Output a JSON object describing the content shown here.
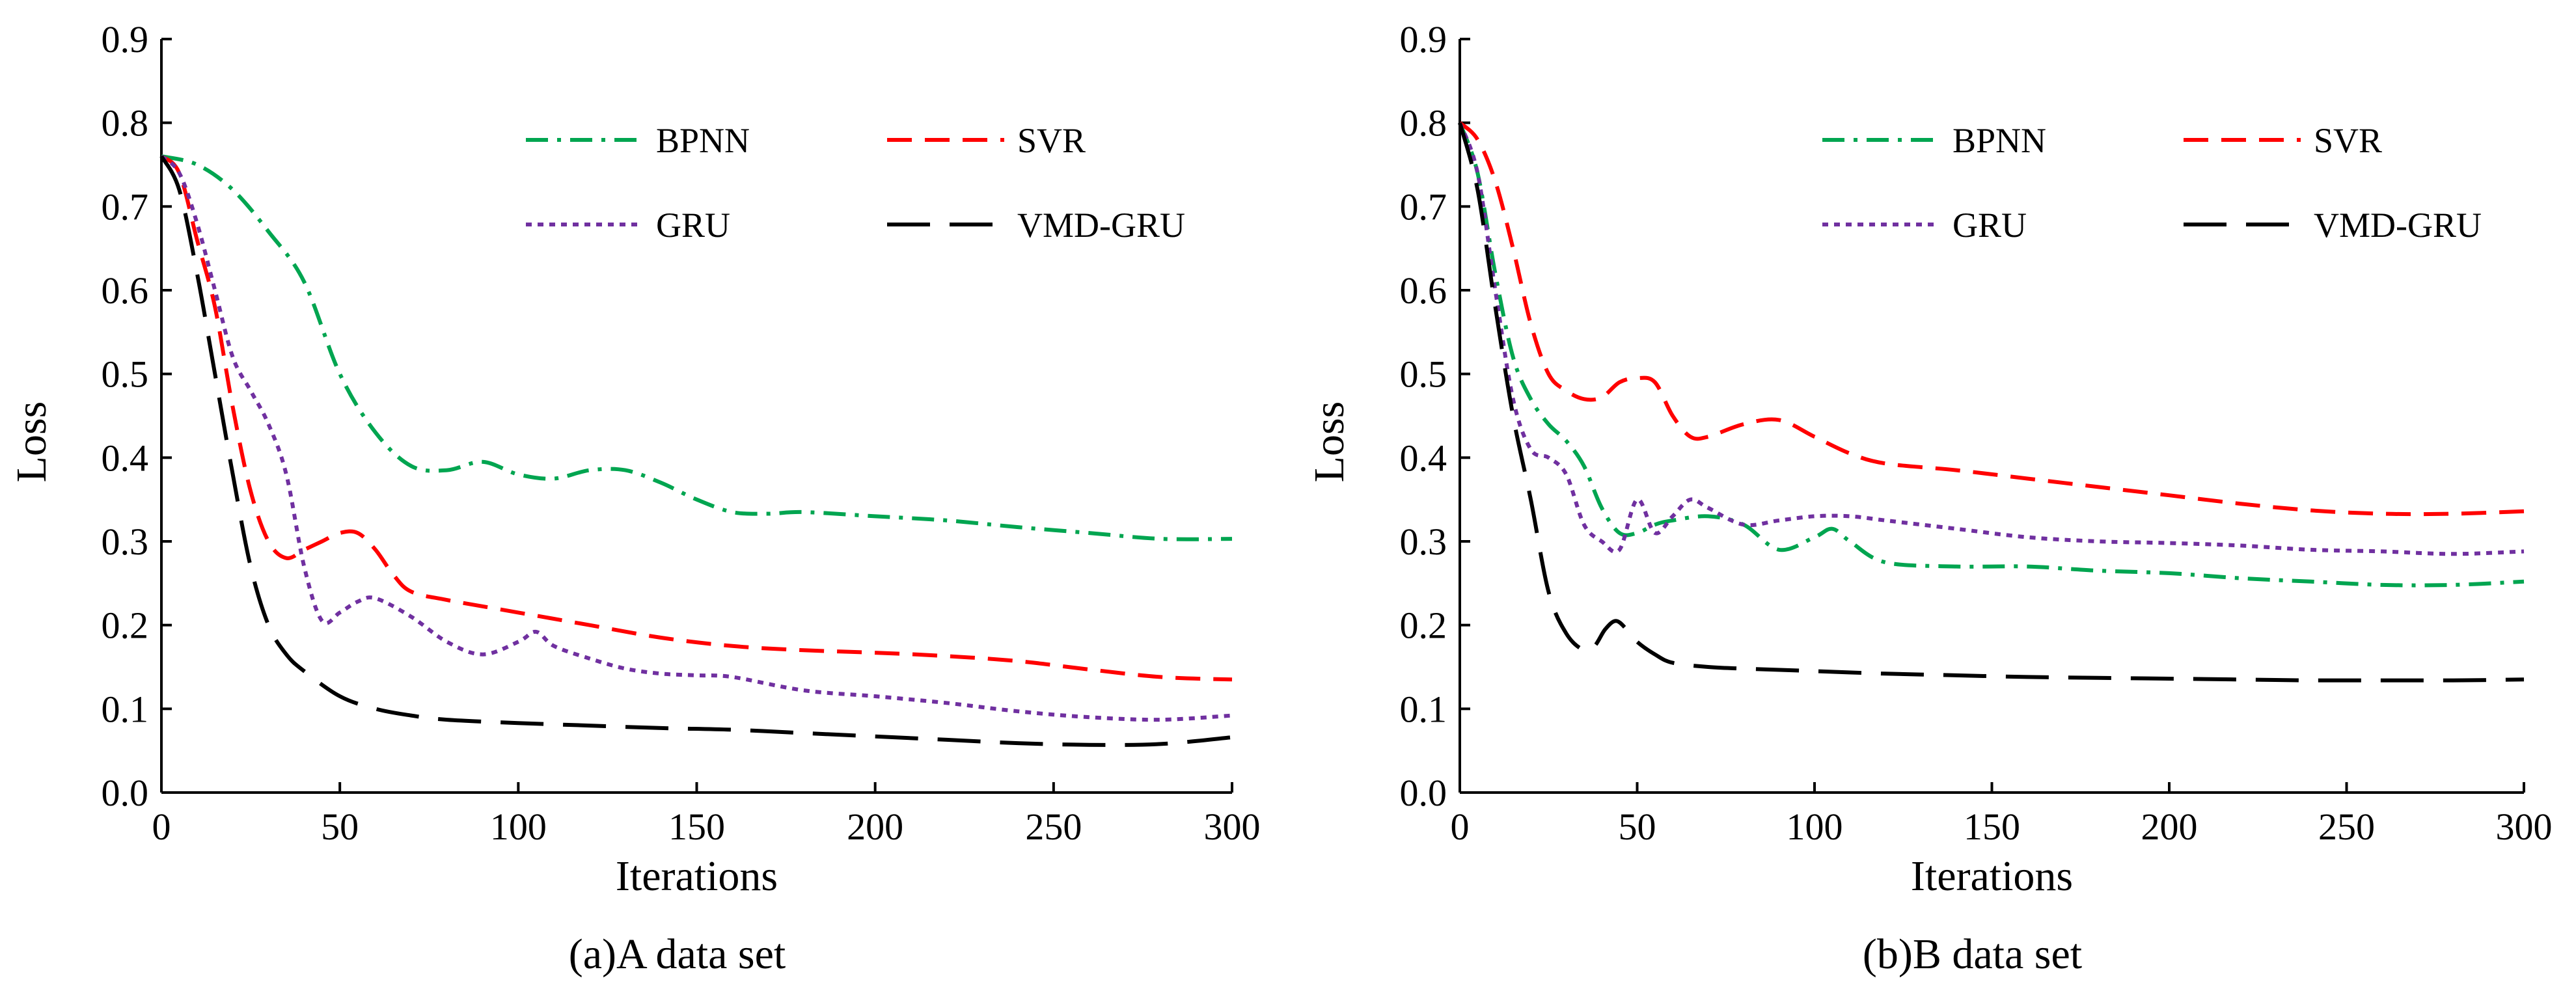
{
  "chart_data": [
    {
      "type": "line",
      "caption": "(a)A data set",
      "xlabel": "Iterations",
      "ylabel": "Loss",
      "xlim": [
        0,
        300
      ],
      "ylim": [
        0,
        0.9
      ],
      "xticks": [
        "0",
        "50",
        "100",
        "150",
        "200",
        "250",
        "300"
      ],
      "yticks": [
        "0.0",
        "0.1",
        "0.2",
        "0.3",
        "0.4",
        "0.5",
        "0.6",
        "0.7",
        "0.8",
        "0.9"
      ],
      "legend": [
        "BPNN",
        "SVR",
        "GRU",
        "VMD-GRU"
      ],
      "legend_position": "top-right",
      "series": [
        {
          "name": "BPNN",
          "color": "#00A550",
          "dash": "dashdot",
          "x": [
            0,
            10,
            20,
            30,
            40,
            50,
            60,
            70,
            80,
            90,
            100,
            110,
            120,
            130,
            140,
            150,
            160,
            170,
            180,
            200,
            220,
            240,
            260,
            280,
            300
          ],
          "y": [
            0.76,
            0.75,
            0.72,
            0.67,
            0.61,
            0.5,
            0.43,
            0.39,
            0.385,
            0.395,
            0.38,
            0.375,
            0.385,
            0.385,
            0.37,
            0.35,
            0.335,
            0.333,
            0.335,
            0.33,
            0.325,
            0.317,
            0.31,
            0.303,
            0.303
          ]
        },
        {
          "name": "SVR",
          "color": "#FF0000",
          "dash": "dash",
          "x": [
            0,
            5,
            10,
            15,
            20,
            25,
            30,
            35,
            40,
            45,
            50,
            55,
            60,
            65,
            70,
            80,
            100,
            120,
            140,
            160,
            180,
            200,
            220,
            240,
            260,
            280,
            300
          ],
          "y": [
            0.76,
            0.74,
            0.66,
            0.58,
            0.46,
            0.36,
            0.3,
            0.28,
            0.29,
            0.3,
            0.31,
            0.31,
            0.29,
            0.26,
            0.24,
            0.23,
            0.215,
            0.2,
            0.185,
            0.175,
            0.17,
            0.167,
            0.163,
            0.157,
            0.147,
            0.138,
            0.135
          ]
        },
        {
          "name": "GRU",
          "color": "#7030A0",
          "dash": "dot",
          "x": [
            0,
            5,
            10,
            15,
            20,
            25,
            30,
            35,
            40,
            45,
            50,
            55,
            60,
            70,
            80,
            90,
            100,
            105,
            110,
            120,
            130,
            140,
            150,
            160,
            180,
            200,
            220,
            240,
            260,
            280,
            300
          ],
          "y": [
            0.76,
            0.74,
            0.68,
            0.6,
            0.52,
            0.48,
            0.44,
            0.38,
            0.27,
            0.205,
            0.215,
            0.228,
            0.232,
            0.21,
            0.18,
            0.165,
            0.18,
            0.192,
            0.175,
            0.16,
            0.148,
            0.142,
            0.14,
            0.138,
            0.122,
            0.115,
            0.107,
            0.097,
            0.09,
            0.087,
            0.092
          ]
        },
        {
          "name": "VMD-GRU",
          "color": "#000000",
          "dash": "longdash",
          "x": [
            0,
            5,
            10,
            15,
            20,
            25,
            30,
            35,
            40,
            50,
            60,
            70,
            80,
            100,
            120,
            140,
            160,
            180,
            200,
            220,
            240,
            260,
            280,
            300
          ],
          "y": [
            0.76,
            0.72,
            0.62,
            0.5,
            0.38,
            0.27,
            0.2,
            0.165,
            0.145,
            0.115,
            0.1,
            0.092,
            0.087,
            0.083,
            0.08,
            0.077,
            0.075,
            0.071,
            0.067,
            0.063,
            0.059,
            0.057,
            0.058,
            0.066
          ]
        }
      ]
    },
    {
      "type": "line",
      "caption": "(b)B data set",
      "xlabel": "Iterations",
      "ylabel": "Loss",
      "xlim": [
        0,
        300
      ],
      "ylim": [
        0,
        0.9
      ],
      "xticks": [
        "0",
        "50",
        "100",
        "150",
        "200",
        "250",
        "300"
      ],
      "yticks": [
        "0.0",
        "0.1",
        "0.2",
        "0.3",
        "0.4",
        "0.5",
        "0.6",
        "0.7",
        "0.8",
        "0.9"
      ],
      "legend": [
        "BPNN",
        "SVR",
        "GRU",
        "VMD-GRU"
      ],
      "legend_position": "top-right",
      "series": [
        {
          "name": "BPNN",
          "color": "#00A550",
          "dash": "dashdot",
          "x": [
            0,
            5,
            10,
            15,
            20,
            25,
            30,
            35,
            40,
            45,
            50,
            55,
            60,
            70,
            80,
            90,
            100,
            105,
            110,
            120,
            140,
            160,
            180,
            200,
            220,
            240,
            260,
            280,
            300
          ],
          "y": [
            0.8,
            0.74,
            0.62,
            0.52,
            0.47,
            0.44,
            0.42,
            0.39,
            0.34,
            0.31,
            0.31,
            0.32,
            0.325,
            0.33,
            0.32,
            0.29,
            0.305,
            0.315,
            0.3,
            0.275,
            0.27,
            0.27,
            0.265,
            0.262,
            0.256,
            0.252,
            0.248,
            0.248,
            0.252
          ]
        },
        {
          "name": "SVR",
          "color": "#FF0000",
          "dash": "dash",
          "x": [
            0,
            5,
            10,
            15,
            20,
            25,
            30,
            35,
            40,
            45,
            50,
            55,
            60,
            65,
            70,
            80,
            90,
            100,
            110,
            120,
            140,
            160,
            180,
            200,
            220,
            240,
            260,
            280,
            300
          ],
          "y": [
            0.8,
            0.78,
            0.73,
            0.65,
            0.56,
            0.5,
            0.48,
            0.47,
            0.472,
            0.49,
            0.495,
            0.49,
            0.45,
            0.425,
            0.425,
            0.44,
            0.445,
            0.425,
            0.405,
            0.393,
            0.385,
            0.375,
            0.365,
            0.355,
            0.345,
            0.337,
            0.333,
            0.333,
            0.336
          ]
        },
        {
          "name": "GRU",
          "color": "#7030A0",
          "dash": "dot",
          "x": [
            0,
            5,
            10,
            15,
            20,
            25,
            30,
            35,
            40,
            45,
            50,
            55,
            60,
            65,
            70,
            80,
            90,
            100,
            110,
            120,
            140,
            160,
            180,
            200,
            220,
            240,
            260,
            280,
            300
          ],
          "y": [
            0.8,
            0.74,
            0.6,
            0.47,
            0.41,
            0.4,
            0.38,
            0.32,
            0.3,
            0.29,
            0.35,
            0.31,
            0.33,
            0.35,
            0.34,
            0.32,
            0.325,
            0.33,
            0.33,
            0.325,
            0.315,
            0.305,
            0.3,
            0.298,
            0.295,
            0.29,
            0.288,
            0.285,
            0.288
          ]
        },
        {
          "name": "VMD-GRU",
          "color": "#000000",
          "dash": "longdash",
          "x": [
            0,
            5,
            10,
            15,
            20,
            25,
            30,
            35,
            38,
            41,
            44,
            47,
            50,
            55,
            60,
            70,
            80,
            100,
            120,
            140,
            160,
            180,
            200,
            220,
            240,
            260,
            280,
            300
          ],
          "y": [
            0.8,
            0.72,
            0.58,
            0.45,
            0.35,
            0.24,
            0.19,
            0.17,
            0.175,
            0.195,
            0.205,
            0.195,
            0.18,
            0.165,
            0.155,
            0.15,
            0.148,
            0.145,
            0.142,
            0.14,
            0.138,
            0.137,
            0.136,
            0.135,
            0.134,
            0.134,
            0.134,
            0.135
          ]
        }
      ]
    }
  ]
}
